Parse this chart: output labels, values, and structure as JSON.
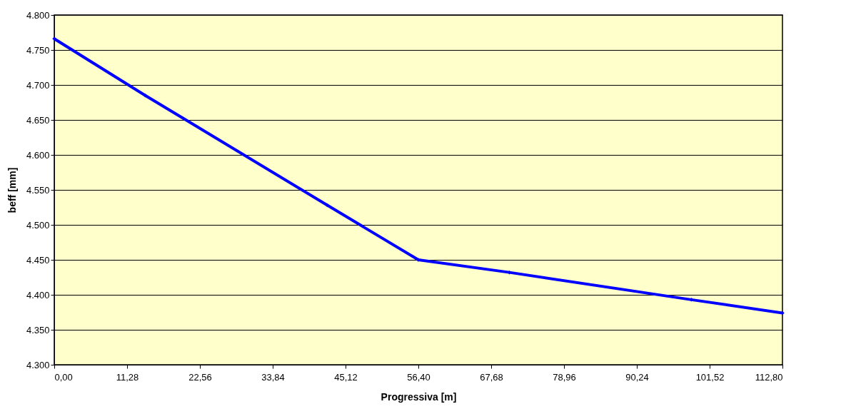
{
  "chart_data": {
    "type": "line",
    "xlabel": "Progressiva [m]",
    "ylabel": "beff [mm]",
    "x": [
      0,
      14.1,
      42.3,
      56.4,
      70.5,
      98.7,
      112.8
    ],
    "series": [
      {
        "color": "#0000ff",
        "values": [
          4766,
          4685,
          4528,
          4450,
          4432,
          4393,
          4374
        ]
      }
    ],
    "xlim": [
      0,
      112.8
    ],
    "xticks": [
      {
        "value": 0,
        "label": "0,00"
      },
      {
        "value": 11.28,
        "label": "11,28"
      },
      {
        "value": 22.56,
        "label": "22,56"
      },
      {
        "value": 33.84,
        "label": "33,84"
      },
      {
        "value": 45.12,
        "label": "45,12"
      },
      {
        "value": 56.4,
        "label": "56,40"
      },
      {
        "value": 67.68,
        "label": "67,68"
      },
      {
        "value": 78.96,
        "label": "78,96"
      },
      {
        "value": 90.24,
        "label": "90,24"
      },
      {
        "value": 101.52,
        "label": "101,52"
      },
      {
        "value": 112.8,
        "label": "112,80"
      }
    ],
    "ylim": [
      4300,
      4800
    ],
    "yticks": [
      {
        "value": 4300,
        "label": "4.300"
      },
      {
        "value": 4350,
        "label": "4.350"
      },
      {
        "value": 4400,
        "label": "4.400"
      },
      {
        "value": 4450,
        "label": "4.450"
      },
      {
        "value": 4500,
        "label": "4.500"
      },
      {
        "value": 4550,
        "label": "4.550"
      },
      {
        "value": 4600,
        "label": "4.600"
      },
      {
        "value": 4650,
        "label": "4.650"
      },
      {
        "value": 4700,
        "label": "4.700"
      },
      {
        "value": 4750,
        "label": "4.750"
      },
      {
        "value": 4800,
        "label": "4.800"
      }
    ],
    "grid": "y",
    "legend": false,
    "marker": "diamond",
    "line_style": "solid"
  }
}
